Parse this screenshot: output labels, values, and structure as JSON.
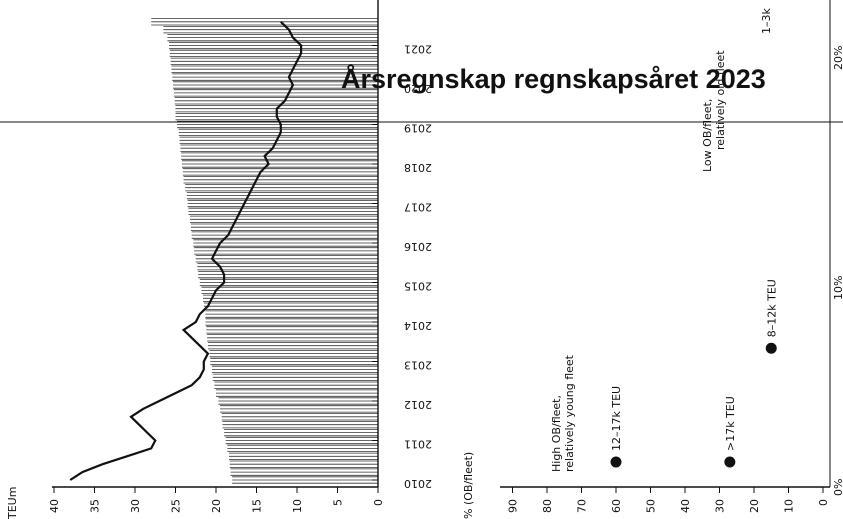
{
  "title": "Årsregnskap regnskapsåret 2023",
  "chart_data": [
    {
      "type": "line",
      "orientation": "rotated",
      "y_unit_label": "TEUm",
      "years": [
        "2010",
        "2011",
        "2012",
        "2013",
        "2014",
        "2015",
        "2016",
        "2017",
        "2018",
        "2019",
        "2020",
        "2021"
      ],
      "y_ticks": [
        40,
        35,
        30,
        25,
        20,
        15,
        10,
        5,
        0
      ],
      "ylim": [
        0,
        40
      ],
      "series": [
        {
          "style": "line",
          "t": [
            2010.0,
            2010.2,
            2010.4,
            2010.6,
            2010.8,
            2011.0,
            2011.2,
            2011.4,
            2011.6,
            2011.8,
            2012.0,
            2012.2,
            2012.4,
            2012.6,
            2012.8,
            2013.0,
            2013.2,
            2013.4,
            2013.6,
            2013.8,
            2014.0,
            2014.2,
            2014.4,
            2014.6,
            2014.8,
            2015.0,
            2015.2,
            2015.4,
            2015.6,
            2015.8,
            2016.0,
            2016.2,
            2016.4,
            2016.6,
            2016.8,
            2017.0,
            2017.2,
            2017.4,
            2017.6,
            2017.8,
            2018.0,
            2018.2,
            2018.4,
            2018.6,
            2018.8,
            2019.0,
            2019.2,
            2019.4,
            2019.6,
            2019.8,
            2020.0,
            2020.2,
            2020.4,
            2020.6,
            2020.8,
            2021.0,
            2021.2,
            2021.4,
            2021.6
          ],
          "values": [
            38.0,
            36.5,
            34.0,
            31.0,
            28.0,
            27.5,
            28.5,
            29.5,
            30.5,
            29.0,
            27.0,
            25.0,
            23.0,
            22.0,
            21.5,
            21.5,
            21.0,
            22.0,
            23.0,
            24.0,
            22.5,
            22.0,
            21.0,
            20.5,
            20.0,
            19.0,
            19.0,
            19.5,
            20.5,
            20.0,
            19.5,
            18.5,
            18.0,
            17.5,
            17.0,
            16.5,
            16.0,
            15.5,
            15.0,
            14.5,
            13.5,
            14.0,
            13.0,
            12.5,
            12.0,
            12.0,
            12.5,
            12.5,
            11.5,
            11.0,
            10.5,
            11.0,
            10.5,
            10.0,
            9.5,
            9.5,
            10.5,
            11.0,
            12.0
          ]
        },
        {
          "style": "bars",
          "t": [
            2010.0,
            2010.2,
            2010.4,
            2010.6,
            2010.8,
            2011.0,
            2011.2,
            2011.4,
            2011.6,
            2011.8,
            2012.0,
            2012.2,
            2012.4,
            2012.6,
            2012.8,
            2013.0,
            2013.2,
            2013.4,
            2013.6,
            2013.8,
            2014.0,
            2014.2,
            2014.4,
            2014.6,
            2014.8,
            2015.0,
            2015.2,
            2015.4,
            2015.6,
            2015.8,
            2016.0,
            2016.2,
            2016.4,
            2016.6,
            2016.8,
            2017.0,
            2017.2,
            2017.4,
            2017.6,
            2017.8,
            2018.0,
            2018.2,
            2018.4,
            2018.6,
            2018.8,
            2019.0,
            2019.2,
            2019.4,
            2019.6,
            2019.8,
            2020.0,
            2020.2,
            2020.4,
            2020.6,
            2020.8,
            2021.0,
            2021.2,
            2021.4,
            2021.6
          ],
          "values": [
            18.0,
            18.2,
            18.3,
            18.4,
            18.6,
            18.8,
            19.0,
            19.2,
            19.3,
            19.5,
            19.7,
            20.0,
            20.2,
            20.4,
            20.5,
            20.7,
            20.8,
            21.0,
            21.1,
            21.2,
            21.3,
            21.3,
            21.5,
            21.6,
            21.8,
            22.0,
            22.2,
            22.3,
            22.5,
            22.7,
            22.8,
            23.0,
            23.1,
            23.2,
            23.4,
            23.5,
            23.6,
            23.8,
            24.0,
            24.1,
            24.2,
            24.3,
            24.4,
            24.5,
            24.6,
            24.8,
            25.0,
            25.0,
            25.1,
            25.2,
            25.3,
            25.4,
            25.5,
            25.6,
            25.7,
            25.8,
            26.0,
            26.5,
            28.0
          ]
        }
      ]
    },
    {
      "type": "scatter",
      "orientation": "rotated",
      "x_axis_label": "% (OB/fleet)",
      "x_ticks": [
        90,
        80,
        70,
        60,
        50,
        40,
        30,
        20,
        10,
        0
      ],
      "x_range": [
        0,
        90
      ],
      "y_ticks": [
        "0%",
        "10%",
        "20%"
      ],
      "points": [
        {
          "label": "12–17k TEU",
          "x": 60,
          "y": 0.0
        },
        {
          "label": ">17k TEU",
          "x": 27,
          "y": 0.0
        },
        {
          "label": "8–12k TEU",
          "x": 15,
          "y": 6.5
        }
      ],
      "annotations": [
        "High OB/fleet,",
        "relatively young fleet",
        "Low OB/fleet,",
        "relatively old fleet",
        "1–3k"
      ]
    }
  ]
}
